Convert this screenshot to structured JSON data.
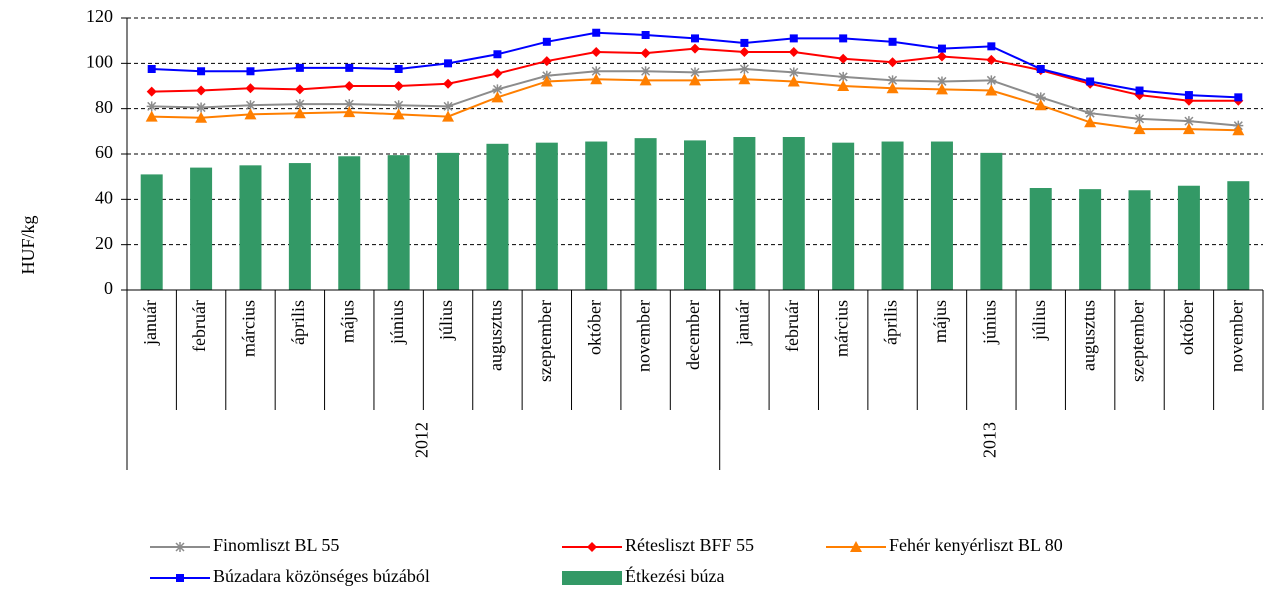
{
  "chart_data": {
    "type": "bar-line",
    "y_label": "HUF/kg",
    "ylim": [
      0,
      120
    ],
    "yticks": [
      0,
      20,
      40,
      60,
      80,
      100,
      120
    ],
    "grid": true,
    "category_groups": [
      {
        "label": "2012",
        "categories": [
          "január",
          "február",
          "március",
          "április",
          "május",
          "június",
          "július",
          "augusztus",
          "szeptember",
          "október",
          "november",
          "december"
        ]
      },
      {
        "label": "2013",
        "categories": [
          "január",
          "február",
          "március",
          "április",
          "május",
          "június",
          "július",
          "augusztus",
          "szeptember",
          "október",
          "november"
        ]
      }
    ],
    "series": [
      {
        "name": "Finomliszt BL 55",
        "type": "line",
        "marker": "star",
        "color": "#8c8c8c",
        "values": [
          81,
          80.5,
          81.5,
          82,
          82,
          81.5,
          81,
          88.5,
          94.5,
          96.5,
          96.5,
          96,
          97.5,
          96,
          94,
          92.5,
          92,
          92.5,
          85,
          78,
          75.5,
          74.5,
          72.5
        ]
      },
      {
        "name": "Rétesliszt BFF 55",
        "type": "line",
        "marker": "diamond",
        "color": "#ff0000",
        "values": [
          87.5,
          88,
          89,
          88.5,
          90,
          90,
          91,
          95.5,
          101,
          105,
          104.5,
          106.5,
          105,
          105,
          102,
          100.5,
          103,
          101.5,
          97,
          91,
          86,
          83.5,
          83.5
        ]
      },
      {
        "name": "Fehér kenyérliszt BL 80",
        "type": "line",
        "marker": "triangle",
        "color": "#ff7f00",
        "values": [
          76.5,
          76,
          77.5,
          78,
          78.5,
          77.5,
          76.5,
          85,
          92,
          93,
          92.5,
          92.5,
          93,
          92,
          90,
          89,
          88.5,
          88,
          81.5,
          74,
          71,
          71,
          70.5
        ]
      },
      {
        "name": "Búzadara közönséges búzából",
        "type": "line",
        "marker": "square",
        "color": "#0000ff",
        "values": [
          97.5,
          96.5,
          96.5,
          98,
          98,
          97.5,
          100,
          104,
          109.5,
          113.5,
          112.5,
          111,
          109,
          111,
          111,
          109.5,
          106.5,
          107.5,
          97.5,
          92,
          88,
          86,
          85
        ]
      },
      {
        "name": "Étkezési búza",
        "type": "bar",
        "color": "#339966",
        "values": [
          51,
          54,
          55,
          56,
          59,
          59.5,
          60.5,
          64.5,
          65,
          65.5,
          67,
          66,
          67.5,
          67.5,
          65,
          65.5,
          65.5,
          60.5,
          45,
          44.5,
          44,
          46,
          48
        ]
      }
    ]
  }
}
